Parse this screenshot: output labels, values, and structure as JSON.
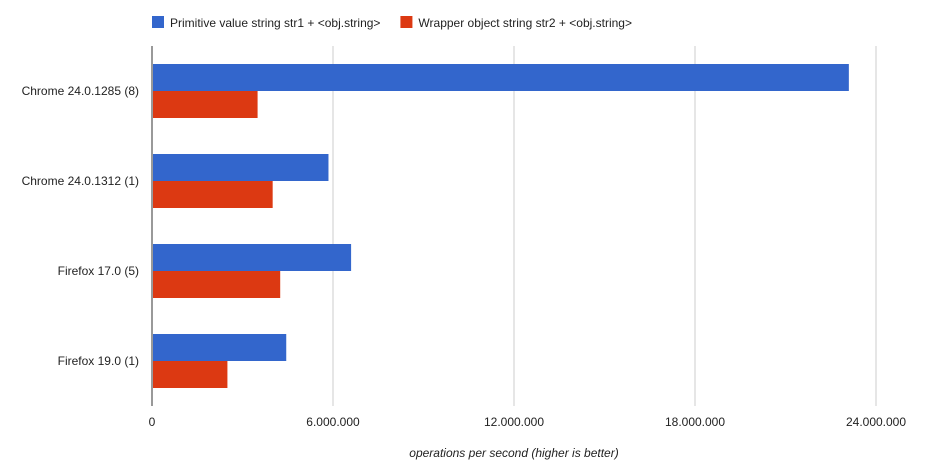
{
  "chart_data": {
    "type": "bar",
    "orientation": "horizontal",
    "categories": [
      "Chrome 24.0.1285 (8)",
      "Chrome 24.0.1312 (1)",
      "Firefox 17.0 (5)",
      "Firefox 19.0 (1)"
    ],
    "series": [
      {
        "name": "Primitive value string str1 + <obj.string>",
        "color": "#3366cc",
        "values": [
          23100000,
          5850000,
          6600000,
          4450000
        ]
      },
      {
        "name": "Wrapper object string str2 + <obj.string>",
        "color": "#dc3912",
        "values": [
          3500000,
          4000000,
          4250000,
          2500000
        ]
      }
    ],
    "xlim": [
      0,
      24000000
    ],
    "x_ticks": [
      {
        "value": 0,
        "label": "0"
      },
      {
        "value": 6000000,
        "label": "6.000.000"
      },
      {
        "value": 12000000,
        "label": "12.000.000"
      },
      {
        "value": 18000000,
        "label": "18.000.000"
      },
      {
        "value": 24000000,
        "label": "24.000.000"
      }
    ],
    "xlabel": "operations per second (higher is better)",
    "legend_position": "top",
    "grid": true,
    "grid_color": "#cccccc"
  }
}
